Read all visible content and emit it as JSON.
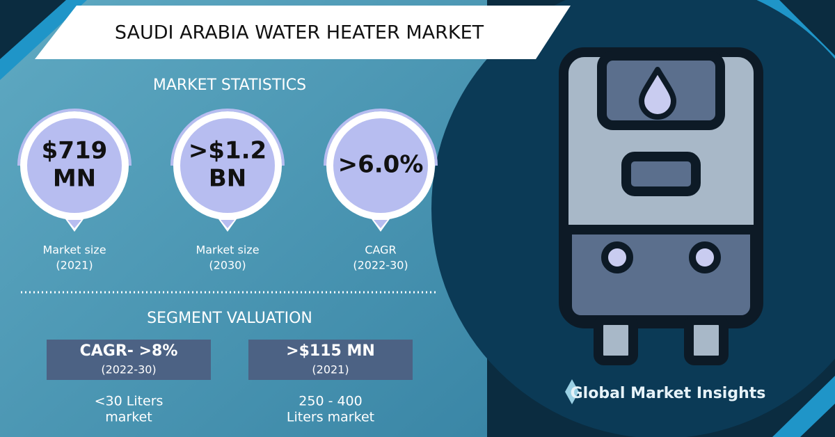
{
  "title": "SAUDI ARABIA WATER HEATER MARKET",
  "market_statistics": {
    "heading": "MARKET STATISTICS",
    "items": [
      {
        "value_lines": [
          "$719",
          "MN"
        ],
        "label_lines": [
          "Market size",
          "(2021)"
        ]
      },
      {
        "value_lines": [
          ">$1.2",
          "BN"
        ],
        "label_lines": [
          "Market size",
          "(2030)"
        ]
      },
      {
        "value_lines": [
          ">6.0%"
        ],
        "label_lines": [
          "CAGR",
          "(2022-30)"
        ]
      }
    ]
  },
  "segment_valuation": {
    "heading": "SEGMENT VALUATION",
    "items": [
      {
        "value": "CAGR- >8%",
        "period": "(2022-30)",
        "label_lines": [
          "<30 Liters",
          "market"
        ]
      },
      {
        "value": ">$115 MN",
        "period": "(2021)",
        "label_lines": [
          "250 - 400",
          "Liters market"
        ]
      }
    ]
  },
  "brand": "Global Market Insights"
}
